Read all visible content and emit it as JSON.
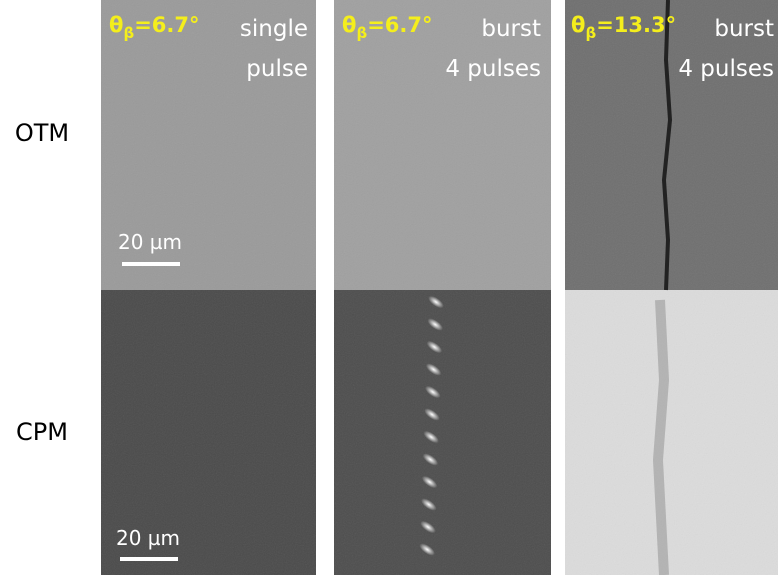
{
  "rows": [
    "OTM",
    "CPM"
  ],
  "columns": [
    {
      "theta": "θ",
      "theta_sub": "β",
      "theta_value": "=6.7°",
      "caption": [
        "single",
        "pulse"
      ]
    },
    {
      "theta": "θ",
      "theta_sub": "β",
      "theta_value": "=6.7°",
      "caption": [
        "burst",
        "4 pulses"
      ]
    },
    {
      "theta": "θ",
      "theta_sub": "β",
      "theta_value": "=13.3°",
      "caption": [
        "burst",
        "4 pulses"
      ]
    }
  ],
  "scale_bars": [
    "20 µm",
    "20 µm"
  ]
}
